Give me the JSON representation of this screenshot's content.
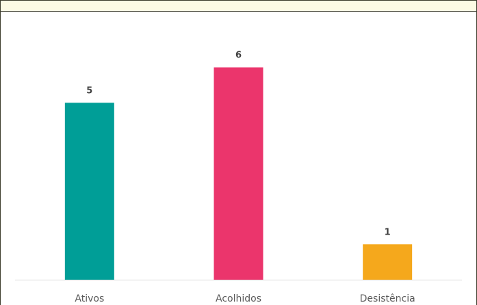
{
  "chart_data": {
    "type": "bar",
    "title": "",
    "xlabel": "",
    "ylabel": "",
    "categories": [
      "Ativos",
      "Acolhidos",
      "Desistência"
    ],
    "values": [
      5,
      6,
      1
    ],
    "ylim": [
      0,
      6.2
    ],
    "grid": false,
    "legend": "none",
    "colors": [
      "#009e97",
      "#eb356c",
      "#f5a81c"
    ],
    "axis_color": "#d9d9d9",
    "frame_band_color": "#fdfbe4"
  }
}
